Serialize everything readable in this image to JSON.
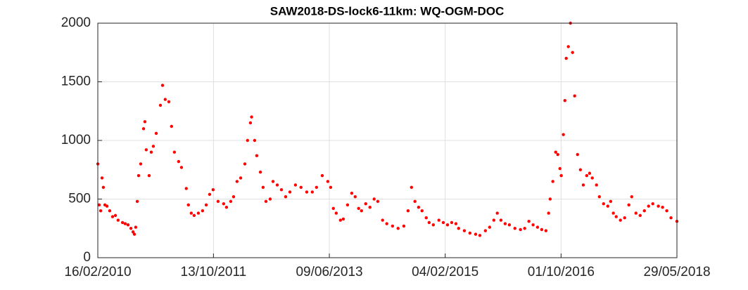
{
  "chart_data": {
    "type": "scatter",
    "title": "SAW2018-DS-lock6-11km: WQ-OGM-DOC",
    "color": "#ff0000",
    "grid": true,
    "xlim": [
      "2010-02-16",
      "2018-05-29"
    ],
    "xticks": [
      {
        "value": "2010-02-16",
        "label": "16/02/2010"
      },
      {
        "value": "2011-10-13",
        "label": "13/10/2011"
      },
      {
        "value": "2013-06-09",
        "label": "09/06/2013"
      },
      {
        "value": "2015-02-04",
        "label": "04/02/2015"
      },
      {
        "value": "2016-10-01",
        "label": "01/10/2016"
      },
      {
        "value": "2018-05-29",
        "label": "29/05/2018"
      }
    ],
    "ylim": [
      0,
      2000
    ],
    "yticks": [
      0,
      500,
      1000,
      1500,
      2000
    ],
    "x": [
      "2010-02-16",
      "2010-02-23",
      "2010-03-03",
      "2010-03-10",
      "2010-03-17",
      "2010-03-25",
      "2010-04-05",
      "2010-04-19",
      "2010-05-04",
      "2010-05-19",
      "2010-06-02",
      "2010-06-25",
      "2010-07-09",
      "2010-07-24",
      "2010-08-08",
      "2010-08-19",
      "2010-08-26",
      "2010-09-02",
      "2010-09-10",
      "2010-09-17",
      "2010-09-28",
      "2010-10-13",
      "2010-10-20",
      "2010-10-27",
      "2010-11-11",
      "2010-11-22",
      "2010-12-03",
      "2010-12-18",
      "2011-01-09",
      "2011-01-20",
      "2011-02-03",
      "2011-02-22",
      "2011-03-08",
      "2011-03-23",
      "2011-04-14",
      "2011-04-29",
      "2011-05-24",
      "2011-06-04",
      "2011-06-19",
      "2011-07-04",
      "2011-07-26",
      "2011-08-17",
      "2011-09-05",
      "2011-09-23",
      "2011-10-11",
      "2011-11-06",
      "2011-12-05",
      "2011-12-20",
      "2012-01-11",
      "2012-01-26",
      "2012-02-13",
      "2012-03-03",
      "2012-03-25",
      "2012-04-08",
      "2012-04-23",
      "2012-04-29",
      "2012-05-15",
      "2012-05-26",
      "2012-06-14",
      "2012-06-28",
      "2012-07-13",
      "2012-08-04",
      "2012-08-19",
      "2012-09-10",
      "2012-10-02",
      "2012-10-24",
      "2012-11-15",
      "2012-12-14",
      "2013-01-12",
      "2013-02-11",
      "2013-03-12",
      "2013-04-03",
      "2013-05-03",
      "2013-06-01",
      "2013-06-16",
      "2013-06-30",
      "2013-07-15",
      "2013-08-06",
      "2013-08-21",
      "2013-09-12",
      "2013-10-04",
      "2013-10-22",
      "2013-11-09",
      "2013-11-24",
      "2013-12-16",
      "2014-01-07",
      "2014-01-29",
      "2014-02-17",
      "2014-03-14",
      "2014-04-05",
      "2014-05-05",
      "2014-06-03",
      "2014-07-03",
      "2014-07-25",
      "2014-08-12",
      "2014-08-30",
      "2014-09-18",
      "2014-10-06",
      "2014-10-28",
      "2014-11-12",
      "2014-12-04",
      "2015-01-02",
      "2015-01-25",
      "2015-02-16",
      "2015-03-10",
      "2015-04-01",
      "2015-04-15",
      "2015-05-15",
      "2015-06-13",
      "2015-07-13",
      "2015-08-04",
      "2015-09-02",
      "2015-09-24",
      "2015-10-16",
      "2015-11-03",
      "2015-11-22",
      "2015-12-14",
      "2016-01-05",
      "2016-02-03",
      "2016-03-03",
      "2016-03-25",
      "2016-04-16",
      "2016-05-08",
      "2016-05-31",
      "2016-06-22",
      "2016-07-14",
      "2016-07-28",
      "2016-08-05",
      "2016-08-19",
      "2016-09-03",
      "2016-09-14",
      "2016-09-25",
      "2016-10-02",
      "2016-10-13",
      "2016-10-21",
      "2016-10-28",
      "2016-11-08",
      "2016-11-19",
      "2016-11-30",
      "2016-12-11",
      "2016-12-26",
      "2017-01-10",
      "2017-01-25",
      "2017-02-12",
      "2017-02-27",
      "2017-03-13",
      "2017-04-04",
      "2017-04-19",
      "2017-05-11",
      "2017-06-02",
      "2017-06-17",
      "2017-07-01",
      "2017-07-16",
      "2017-08-07",
      "2017-08-29",
      "2017-09-20",
      "2017-10-05",
      "2017-10-27",
      "2017-11-18",
      "2017-12-10",
      "2018-01-01",
      "2018-01-23",
      "2018-02-21",
      "2018-03-15",
      "2018-04-06",
      "2018-04-28",
      "2018-05-29"
    ],
    "values": [
      800,
      450,
      400,
      680,
      600,
      450,
      440,
      400,
      350,
      360,
      320,
      300,
      290,
      280,
      250,
      220,
      200,
      260,
      480,
      700,
      800,
      1100,
      1160,
      920,
      700,
      900,
      950,
      1060,
      1300,
      1470,
      1350,
      1330,
      1120,
      900,
      820,
      770,
      590,
      450,
      380,
      360,
      380,
      400,
      450,
      540,
      580,
      480,
      460,
      430,
      480,
      520,
      650,
      680,
      800,
      1000,
      1150,
      1200,
      1000,
      870,
      730,
      600,
      480,
      500,
      650,
      620,
      580,
      520,
      560,
      620,
      600,
      560,
      560,
      600,
      700,
      650,
      600,
      420,
      380,
      320,
      330,
      450,
      550,
      520,
      420,
      400,
      460,
      430,
      500,
      480,
      320,
      290,
      270,
      250,
      270,
      400,
      600,
      480,
      430,
      400,
      340,
      300,
      280,
      320,
      300,
      280,
      300,
      290,
      250,
      230,
      210,
      200,
      190,
      230,
      260,
      320,
      380,
      320,
      290,
      280,
      250,
      240,
      250,
      310,
      280,
      260,
      240,
      230,
      380,
      500,
      650,
      900,
      880,
      760,
      700,
      1050,
      1340,
      1700,
      1800,
      2000,
      1750,
      1380,
      880,
      750,
      620,
      700,
      720,
      680,
      620,
      520,
      460,
      440,
      480,
      380,
      350,
      320,
      340,
      450,
      520,
      380,
      360,
      400,
      440,
      460,
      440,
      430,
      400,
      340,
      310
    ]
  }
}
